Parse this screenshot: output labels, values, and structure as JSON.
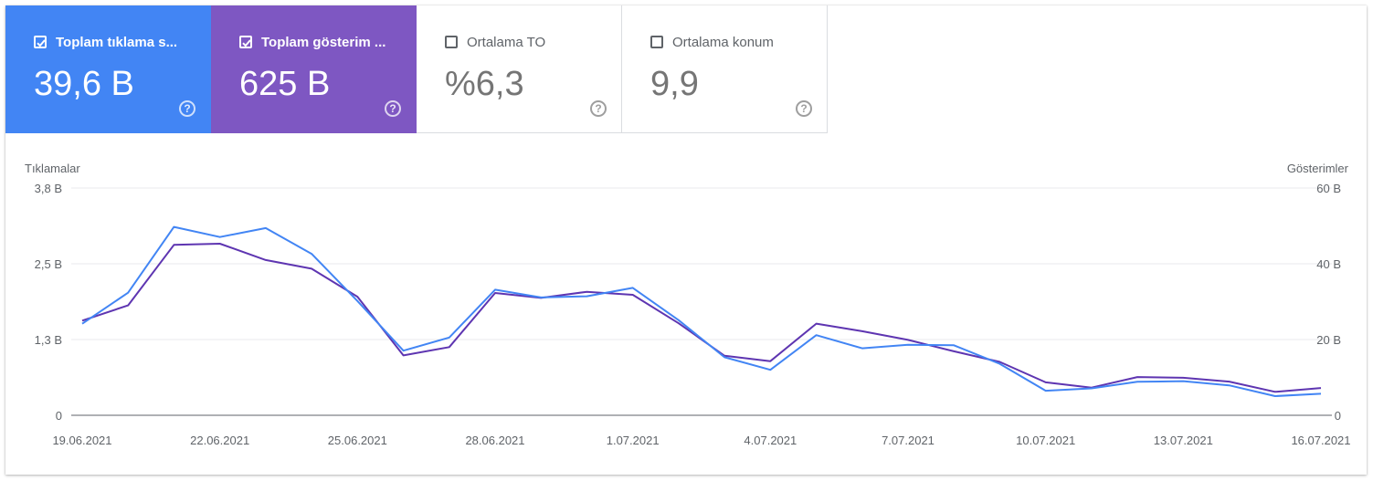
{
  "cards": [
    {
      "label": "Toplam tıklama s...",
      "value": "39,6 B",
      "checked": true,
      "help": "?"
    },
    {
      "label": "Toplam gösterim ...",
      "value": "625 B",
      "checked": true,
      "help": "?"
    },
    {
      "label": "Ortalama TO",
      "value": "%6,3",
      "checked": false,
      "help": "?"
    },
    {
      "label": "Ortalama konum",
      "value": "9,9",
      "checked": false,
      "help": "?"
    }
  ],
  "colors": {
    "clicks": "#4285f4",
    "impressions": "#5e35b1",
    "impressions_card": "#7e57c2"
  },
  "chart_data": {
    "type": "line",
    "left_axis_title": "Tıklamalar",
    "right_axis_title": "Gösterimler",
    "left_ticks": [
      "3,8 B",
      "2,5 B",
      "1,3 B",
      "0"
    ],
    "right_ticks": [
      "60 B",
      "40 B",
      "20 B",
      "0"
    ],
    "left_range": [
      0,
      3800
    ],
    "right_range": [
      0,
      60000
    ],
    "x_tick_labels": [
      "19.06.2021",
      "22.06.2021",
      "25.06.2021",
      "28.06.2021",
      "1.07.2021",
      "4.07.2021",
      "7.07.2021",
      "10.07.2021",
      "13.07.2021",
      "16.07.2021"
    ],
    "x_tick_indices": [
      0,
      3,
      6,
      9,
      12,
      15,
      18,
      21,
      24,
      27
    ],
    "x": [
      "19.06.2021",
      "20.06.2021",
      "21.06.2021",
      "22.06.2021",
      "23.06.2021",
      "24.06.2021",
      "25.06.2021",
      "26.06.2021",
      "27.06.2021",
      "28.06.2021",
      "29.06.2021",
      "30.06.2021",
      "1.07.2021",
      "2.07.2021",
      "3.07.2021",
      "4.07.2021",
      "5.07.2021",
      "6.07.2021",
      "7.07.2021",
      "8.07.2021",
      "9.07.2021",
      "10.07.2021",
      "11.07.2021",
      "12.07.2021",
      "13.07.2021",
      "14.07.2021",
      "15.07.2021",
      "16.07.2021"
    ],
    "series": [
      {
        "name": "Toplam tıklama s...",
        "axis": "left",
        "values": [
          1530,
          2050,
          3150,
          2980,
          3130,
          2700,
          1910,
          1080,
          1300,
          2100,
          1970,
          1990,
          2130,
          1590,
          970,
          760,
          1340,
          1120,
          1180,
          1170,
          860,
          410,
          450,
          560,
          570,
          500,
          320,
          360
        ]
      },
      {
        "name": "Toplam gösterim ...",
        "axis": "right",
        "values": [
          25000,
          29000,
          45000,
          45300,
          41000,
          38700,
          31300,
          15800,
          18000,
          32300,
          31000,
          32600,
          31800,
          24300,
          15700,
          14300,
          24200,
          22200,
          19900,
          16900,
          14100,
          8700,
          7300,
          10100,
          9900,
          8900,
          6200,
          7200
        ]
      }
    ]
  }
}
